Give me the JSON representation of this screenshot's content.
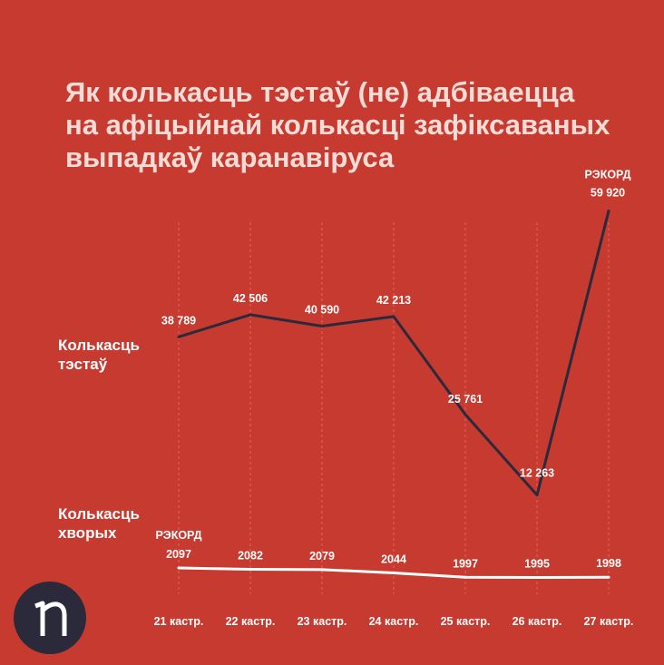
{
  "title_lines": [
    "Як колькасць тэстаў (не) адбіваецца",
    "на афіцыйнай колькасці зафіксаваных",
    "выпадкаў каранавіруса"
  ],
  "series_labels": {
    "tests": [
      "Колькасць",
      "тэстаў"
    ],
    "cases": [
      "Колькасць",
      "хворых"
    ]
  },
  "colors": {
    "background": "#c73a30",
    "tests_line": "#2b2a3b",
    "cases_line": "#ffffff",
    "gridline": "#e0675c"
  },
  "logo": {
    "icon": "n-letter-logo-icon"
  },
  "chart_data": {
    "type": "line",
    "categories": [
      "21 кастр.",
      "22 кастр.",
      "23 кастр.",
      "24 кастр.",
      "25 кастр.",
      "26 кастр.",
      "27 кастр."
    ],
    "grid": {
      "vertical": true,
      "style": "dashed"
    },
    "series": [
      {
        "name": "Колькасць тэстаў",
        "values": [
          38789,
          42506,
          40590,
          42213,
          25761,
          12263,
          59920
        ],
        "labels": [
          "38 789",
          "42 506",
          "40 590",
          "42 213",
          "25 761",
          "12 263",
          "59 920"
        ],
        "annotations": [
          {
            "index": 6,
            "text": "РЭКОРД"
          }
        ]
      },
      {
        "name": "Колькасць хворых",
        "values": [
          2097,
          2082,
          2079,
          2044,
          1997,
          1995,
          1998
        ],
        "labels": [
          "2097",
          "2082",
          "2079",
          "2044",
          "1997",
          "1995",
          "1998"
        ],
        "annotations": [
          {
            "index": 0,
            "text": "РЭКОРД"
          }
        ]
      }
    ]
  }
}
